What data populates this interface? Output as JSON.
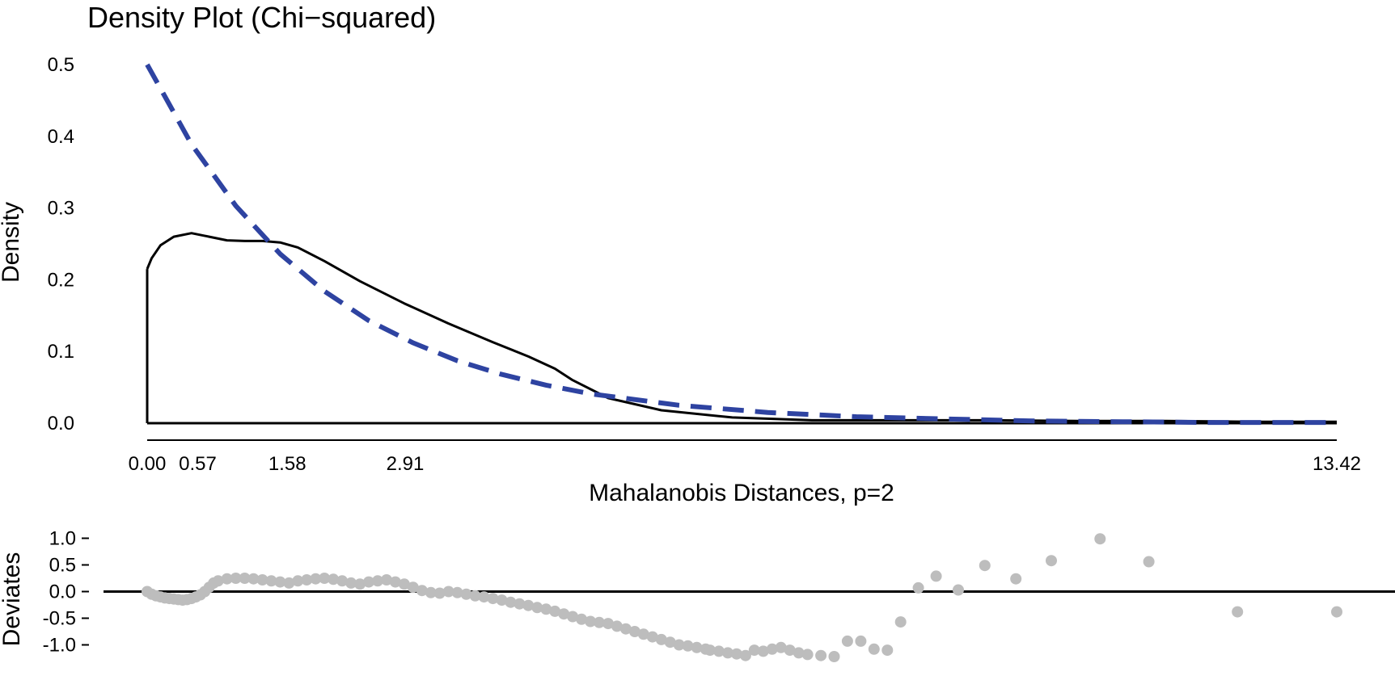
{
  "chart_data": [
    {
      "type": "line",
      "title": "Density Plot (Chi−squared)",
      "xlabel": "Mahalanobis Distances, p=2",
      "ylabel": "Density",
      "xlim": [
        0,
        13.42
      ],
      "ylim": [
        0,
        0.5
      ],
      "x_ticks": [
        "0.00",
        "0.57",
        "1.58",
        "2.91",
        "13.42"
      ],
      "x_tick_values": [
        0,
        0.57,
        1.58,
        2.91,
        13.42
      ],
      "y_ticks": [
        "0.0",
        "0.1",
        "0.2",
        "0.3",
        "0.4",
        "0.5"
      ],
      "y_tick_values": [
        0,
        0.1,
        0.2,
        0.3,
        0.4,
        0.5
      ],
      "colors": {
        "empirical": "#000000",
        "theoretical": "#2e43a1"
      },
      "series": [
        {
          "style": "solid",
          "x": [
            0,
            0.05,
            0.15,
            0.3,
            0.5,
            0.7,
            0.9,
            1.1,
            1.3,
            1.5,
            1.7,
            2.0,
            2.4,
            2.9,
            3.4,
            3.9,
            4.3,
            4.6,
            4.8,
            5.2,
            5.8,
            6.6,
            7.5,
            8.5,
            9.5,
            10.5,
            11.5,
            12.5,
            13.42
          ],
          "y": [
            0.215,
            0.23,
            0.248,
            0.26,
            0.265,
            0.26,
            0.255,
            0.254,
            0.254,
            0.252,
            0.245,
            0.226,
            0.198,
            0.167,
            0.139,
            0.113,
            0.093,
            0.076,
            0.06,
            0.035,
            0.018,
            0.008,
            0.004,
            0.004,
            0.004,
            0.003,
            0.003,
            0.002,
            0.002
          ]
        },
        {
          "style": "dashed",
          "x": [
            0,
            0.5,
            1.0,
            1.5,
            2.0,
            2.5,
            3.0,
            3.5,
            4.0,
            4.5,
            5.0,
            6.0,
            7.0,
            8.0,
            9.0,
            10.0,
            11.0,
            12.0,
            13.42
          ],
          "y": [
            0.5,
            0.389,
            0.303,
            0.236,
            0.184,
            0.143,
            0.112,
            0.087,
            0.068,
            0.053,
            0.041,
            0.025,
            0.015,
            0.009,
            0.006,
            0.003,
            0.002,
            0.001,
            0.001
          ]
        }
      ]
    },
    {
      "type": "scatter",
      "ylabel": "Deviates",
      "xlim": [
        0,
        13.42
      ],
      "ylim": [
        -1.25,
        1.25
      ],
      "y_ticks": [
        "1.0",
        "0.5",
        "0.0",
        "-0.5",
        "-1.0"
      ],
      "y_tick_values": [
        1.0,
        0.5,
        0.0,
        -0.5,
        -1.0
      ],
      "reference_line_y": 0,
      "point_color": "#bdbdbd",
      "points": {
        "x": [
          0.0,
          0.05,
          0.1,
          0.15,
          0.2,
          0.25,
          0.3,
          0.35,
          0.4,
          0.45,
          0.5,
          0.55,
          0.6,
          0.65,
          0.7,
          0.75,
          0.8,
          0.9,
          1.0,
          1.1,
          1.2,
          1.3,
          1.4,
          1.5,
          1.6,
          1.7,
          1.8,
          1.9,
          2.0,
          2.1,
          2.2,
          2.3,
          2.4,
          2.5,
          2.6,
          2.7,
          2.8,
          2.9,
          3.0,
          3.1,
          3.2,
          3.3,
          3.4,
          3.5,
          3.6,
          3.7,
          3.8,
          3.9,
          4.0,
          4.1,
          4.2,
          4.3,
          4.4,
          4.5,
          4.6,
          4.7,
          4.8,
          4.9,
          5.0,
          5.1,
          5.2,
          5.3,
          5.4,
          5.5,
          5.6,
          5.7,
          5.8,
          5.9,
          6.0,
          6.1,
          6.2,
          6.3,
          6.35,
          6.45,
          6.55,
          6.65,
          6.75,
          6.85,
          6.95,
          7.05,
          7.15,
          7.25,
          7.35,
          7.45,
          7.6,
          7.75,
          7.9,
          8.05,
          8.2,
          8.35,
          8.5,
          8.7,
          8.9,
          9.15,
          9.45,
          9.8,
          10.2,
          10.75,
          11.3,
          12.3,
          13.42
        ],
        "y": [
          0.0,
          -0.05,
          -0.08,
          -0.1,
          -0.12,
          -0.13,
          -0.14,
          -0.15,
          -0.16,
          -0.15,
          -0.13,
          -0.1,
          -0.06,
          0.0,
          0.08,
          0.16,
          0.2,
          0.24,
          0.25,
          0.25,
          0.24,
          0.22,
          0.2,
          0.18,
          0.16,
          0.2,
          0.22,
          0.24,
          0.25,
          0.23,
          0.2,
          0.16,
          0.14,
          0.18,
          0.2,
          0.22,
          0.18,
          0.14,
          0.08,
          0.02,
          -0.02,
          -0.03,
          0.0,
          -0.02,
          -0.05,
          -0.08,
          -0.1,
          -0.13,
          -0.16,
          -0.2,
          -0.23,
          -0.26,
          -0.3,
          -0.33,
          -0.37,
          -0.42,
          -0.47,
          -0.52,
          -0.56,
          -0.58,
          -0.6,
          -0.65,
          -0.7,
          -0.75,
          -0.8,
          -0.85,
          -0.9,
          -0.95,
          -1.0,
          -1.02,
          -1.05,
          -1.08,
          -1.1,
          -1.12,
          -1.15,
          -1.17,
          -1.2,
          -1.1,
          -1.12,
          -1.08,
          -1.05,
          -1.1,
          -1.15,
          -1.18,
          -1.2,
          -1.22,
          -0.93,
          -0.93,
          -1.08,
          -1.1,
          -0.57,
          0.07,
          0.29,
          0.03,
          0.49,
          0.24,
          0.58,
          0.99,
          0.56,
          -0.38,
          -0.38
        ]
      }
    }
  ]
}
